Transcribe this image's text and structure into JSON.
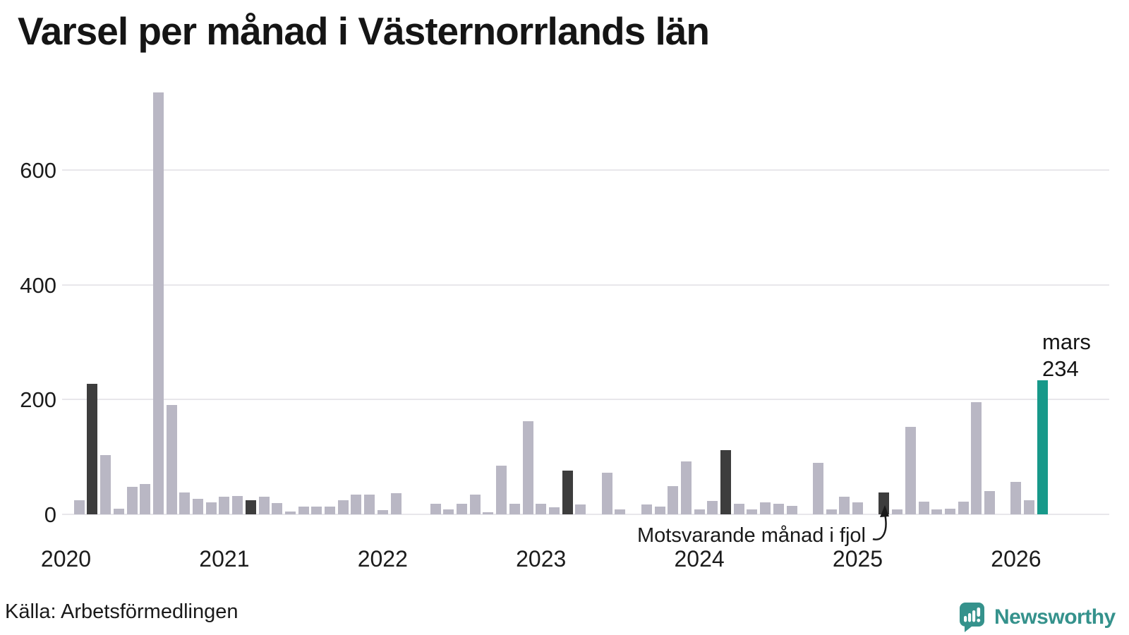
{
  "title": "Varsel per månad i Västernorrlands län",
  "source": "Källa: Arbetsförmedlingen",
  "annotation": {
    "text": "Motsvarande månad i fjol"
  },
  "current_label": {
    "month": "mars",
    "value": "234"
  },
  "branding": {
    "logo_text": "Newsworthy"
  },
  "colors": {
    "bar_default": "#b9b7c4",
    "bar_highlight": "#3d3d3d",
    "bar_current": "#17998a",
    "grid": "#e8e7eb",
    "logo": "#35928c",
    "text": "#1a1a1a"
  },
  "chart_data": {
    "type": "bar",
    "title": "Varsel per månad i Västernorrlands län",
    "xlabel": "",
    "ylabel": "",
    "ylim": [
      0,
      740
    ],
    "y_ticks": [
      0,
      200,
      400,
      600
    ],
    "x_tick_years": [
      "2020",
      "2021",
      "2022",
      "2023",
      "2024",
      "2025",
      "2026"
    ],
    "legend": "none",
    "grid": "horizontal",
    "highlight_meaning": "Motsvarande månad i fjol (mars varje år)",
    "current_point": {
      "m": "2026-03",
      "label": "mars",
      "value": 234
    },
    "months": [
      {
        "m": "2020-01",
        "v": 0
      },
      {
        "m": "2020-02",
        "v": 25
      },
      {
        "m": "2020-03",
        "v": 228,
        "h": true
      },
      {
        "m": "2020-04",
        "v": 103
      },
      {
        "m": "2020-05",
        "v": 10
      },
      {
        "m": "2020-06",
        "v": 48
      },
      {
        "m": "2020-07",
        "v": 53
      },
      {
        "m": "2020-08",
        "v": 735
      },
      {
        "m": "2020-09",
        "v": 190
      },
      {
        "m": "2020-10",
        "v": 38
      },
      {
        "m": "2020-11",
        "v": 27
      },
      {
        "m": "2020-12",
        "v": 21
      },
      {
        "m": "2021-01",
        "v": 31
      },
      {
        "m": "2021-02",
        "v": 32
      },
      {
        "m": "2021-03",
        "v": 25,
        "h": true
      },
      {
        "m": "2021-04",
        "v": 31
      },
      {
        "m": "2021-05",
        "v": 20
      },
      {
        "m": "2021-06",
        "v": 5
      },
      {
        "m": "2021-07",
        "v": 14
      },
      {
        "m": "2021-08",
        "v": 13
      },
      {
        "m": "2021-09",
        "v": 13
      },
      {
        "m": "2021-10",
        "v": 24
      },
      {
        "m": "2021-11",
        "v": 34
      },
      {
        "m": "2021-12",
        "v": 34
      },
      {
        "m": "2022-01",
        "v": 7
      },
      {
        "m": "2022-02",
        "v": 37
      },
      {
        "m": "2022-03",
        "v": 0,
        "h": true
      },
      {
        "m": "2022-04",
        "v": 0
      },
      {
        "m": "2022-05",
        "v": 18
      },
      {
        "m": "2022-06",
        "v": 8
      },
      {
        "m": "2022-07",
        "v": 19
      },
      {
        "m": "2022-08",
        "v": 35
      },
      {
        "m": "2022-09",
        "v": 4
      },
      {
        "m": "2022-10",
        "v": 85
      },
      {
        "m": "2022-11",
        "v": 19
      },
      {
        "m": "2022-12",
        "v": 162
      },
      {
        "m": "2023-01",
        "v": 19
      },
      {
        "m": "2023-02",
        "v": 12
      },
      {
        "m": "2023-03",
        "v": 76,
        "h": true
      },
      {
        "m": "2023-04",
        "v": 17
      },
      {
        "m": "2023-05",
        "v": 0
      },
      {
        "m": "2023-06",
        "v": 73
      },
      {
        "m": "2023-07",
        "v": 8
      },
      {
        "m": "2023-08",
        "v": 0
      },
      {
        "m": "2023-09",
        "v": 17
      },
      {
        "m": "2023-10",
        "v": 13
      },
      {
        "m": "2023-11",
        "v": 49
      },
      {
        "m": "2023-12",
        "v": 92
      },
      {
        "m": "2024-01",
        "v": 8
      },
      {
        "m": "2024-02",
        "v": 23
      },
      {
        "m": "2024-03",
        "v": 112,
        "h": true
      },
      {
        "m": "2024-04",
        "v": 18
      },
      {
        "m": "2024-05",
        "v": 8
      },
      {
        "m": "2024-06",
        "v": 21
      },
      {
        "m": "2024-07",
        "v": 19
      },
      {
        "m": "2024-08",
        "v": 15
      },
      {
        "m": "2024-09",
        "v": 0
      },
      {
        "m": "2024-10",
        "v": 90
      },
      {
        "m": "2024-11",
        "v": 8
      },
      {
        "m": "2024-12",
        "v": 31
      },
      {
        "m": "2025-01",
        "v": 21
      },
      {
        "m": "2025-02",
        "v": 0
      },
      {
        "m": "2025-03",
        "v": 38,
        "h": true
      },
      {
        "m": "2025-04",
        "v": 8
      },
      {
        "m": "2025-05",
        "v": 152
      },
      {
        "m": "2025-06",
        "v": 22
      },
      {
        "m": "2025-07",
        "v": 8
      },
      {
        "m": "2025-08",
        "v": 10
      },
      {
        "m": "2025-09",
        "v": 22
      },
      {
        "m": "2025-10",
        "v": 195
      },
      {
        "m": "2025-11",
        "v": 40
      },
      {
        "m": "2025-12",
        "v": 0
      },
      {
        "m": "2026-01",
        "v": 56
      },
      {
        "m": "2026-02",
        "v": 24
      },
      {
        "m": "2026-03",
        "v": 234,
        "c": true
      }
    ]
  }
}
